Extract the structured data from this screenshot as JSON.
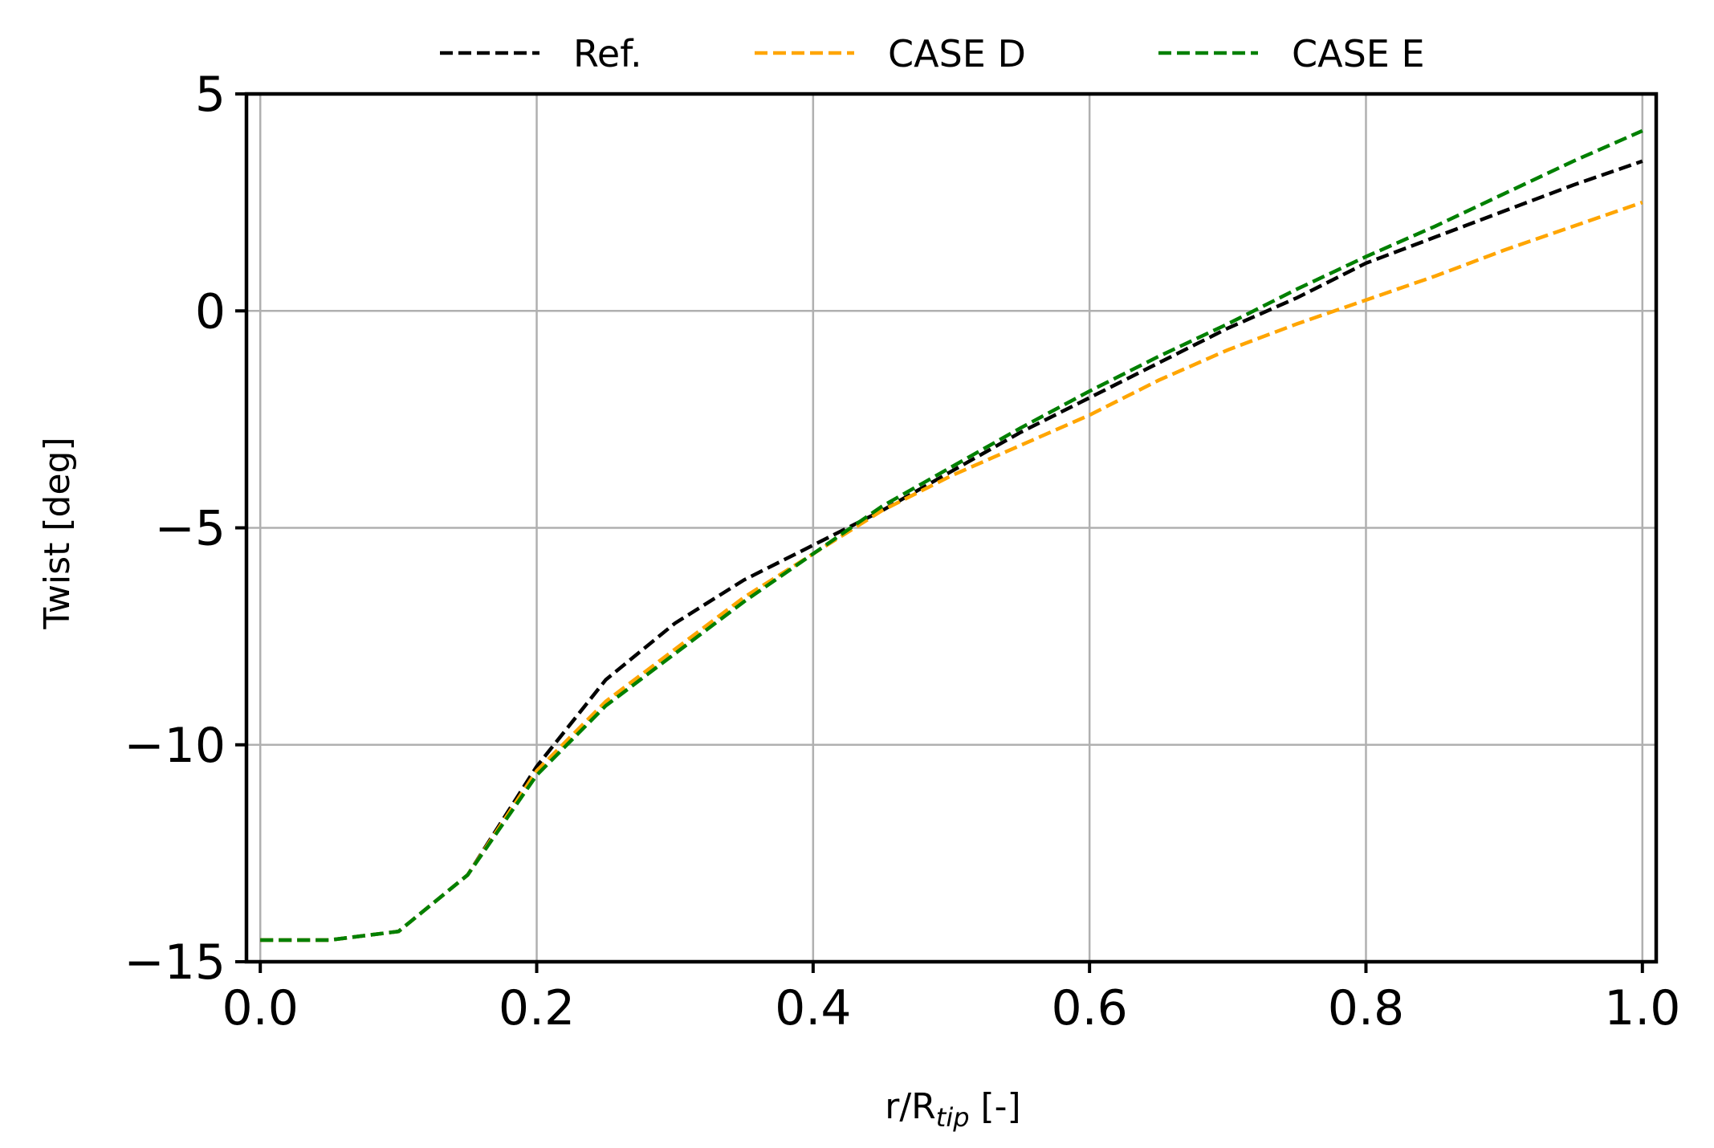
{
  "chart_data": {
    "type": "line",
    "title": "",
    "xlabel_main": "r/R",
    "xlabel_sub": "tip",
    "xlabel_tail": " [-]",
    "ylabel": "Twist [deg]",
    "xlim": [
      -0.01,
      1.01
    ],
    "ylim": [
      -15,
      5
    ],
    "xticks": [
      0.0,
      0.2,
      0.4,
      0.6,
      0.8,
      1.0
    ],
    "xtick_labels": [
      "0.0",
      "0.2",
      "0.4",
      "0.6",
      "0.8",
      "1.0"
    ],
    "yticks": [
      -15,
      -10,
      -5,
      0,
      5
    ],
    "ytick_labels": [
      "−15",
      "−10",
      "−5",
      "0",
      "5"
    ],
    "grid": true,
    "legend_position": "top",
    "series": [
      {
        "name": "Ref.",
        "color": "#000000",
        "x": [
          0.0,
          0.05,
          0.1,
          0.15,
          0.2,
          0.25,
          0.3,
          0.35,
          0.4,
          0.45,
          0.5,
          0.55,
          0.6,
          0.65,
          0.7,
          0.75,
          0.8,
          0.85,
          0.9,
          0.95,
          1.0
        ],
        "y": [
          -14.5,
          -14.5,
          -14.3,
          -13.0,
          -10.5,
          -8.5,
          -7.2,
          -6.2,
          -5.4,
          -4.6,
          -3.7,
          -2.8,
          -2.0,
          -1.2,
          -0.4,
          0.3,
          1.1,
          1.7,
          2.3,
          2.9,
          3.45
        ]
      },
      {
        "name": "CASE D",
        "color": "#ffa500",
        "x": [
          0.0,
          0.05,
          0.1,
          0.15,
          0.2,
          0.25,
          0.3,
          0.35,
          0.4,
          0.45,
          0.5,
          0.55,
          0.6,
          0.65,
          0.7,
          0.75,
          0.8,
          0.85,
          0.9,
          0.95,
          1.0
        ],
        "y": [
          -14.5,
          -14.5,
          -14.3,
          -13.0,
          -10.6,
          -9.0,
          -7.8,
          -6.6,
          -5.6,
          -4.6,
          -3.8,
          -3.1,
          -2.4,
          -1.6,
          -0.9,
          -0.3,
          0.25,
          0.8,
          1.4,
          1.95,
          2.5
        ]
      },
      {
        "name": "CASE E",
        "color": "#008000",
        "x": [
          0.0,
          0.05,
          0.1,
          0.15,
          0.2,
          0.25,
          0.3,
          0.35,
          0.4,
          0.45,
          0.5,
          0.55,
          0.6,
          0.65,
          0.7,
          0.75,
          0.8,
          0.85,
          0.9,
          0.95,
          1.0
        ],
        "y": [
          -14.5,
          -14.5,
          -14.3,
          -13.0,
          -10.7,
          -9.1,
          -7.9,
          -6.7,
          -5.6,
          -4.5,
          -3.6,
          -2.7,
          -1.85,
          -1.05,
          -0.3,
          0.5,
          1.25,
          1.95,
          2.7,
          3.45,
          4.15
        ]
      }
    ]
  }
}
